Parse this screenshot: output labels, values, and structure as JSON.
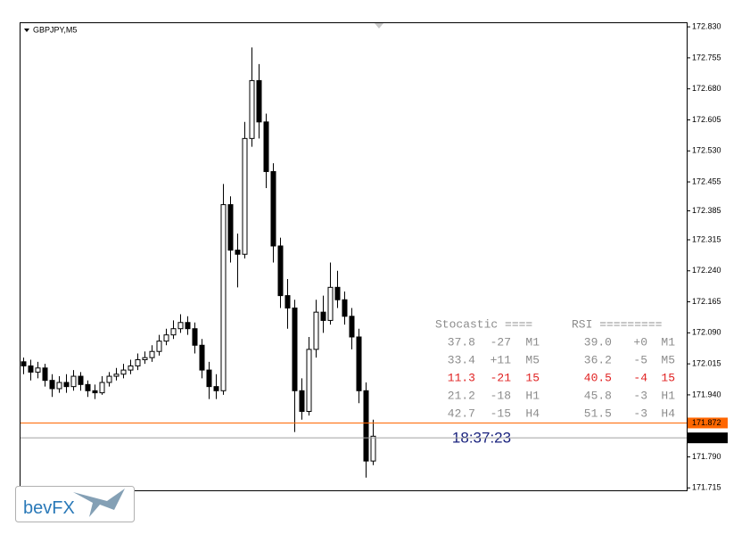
{
  "chart_data": {
    "type": "candlestick",
    "title": "GBPJPY,M5",
    "ylim": [
      171.707,
      172.841
    ],
    "yticks": [
      {
        "value": 172.83,
        "label": "172.830"
      },
      172.755,
      {
        "value": 172.68,
        "label": "172.680"
      },
      172.605,
      {
        "value": 172.53,
        "label": "172.530"
      },
      172.455,
      172.385,
      172.315,
      {
        "value": 172.24,
        "label": "172.240"
      },
      172.165,
      {
        "value": 172.09,
        "label": "172.090"
      },
      172.015,
      {
        "value": 171.94,
        "label": "171.940"
      },
      {
        "value": 171.79,
        "label": "171.790"
      },
      171.715
    ],
    "bull_color": "#ffffff",
    "bear_color": "#000000",
    "series": [
      {
        "open": [
          172.02,
          172.01,
          171.995,
          172.005,
          171.975,
          171.955,
          171.97,
          171.96,
          171.985,
          171.965,
          171.95,
          171.945,
          171.97,
          171.985,
          171.99,
          172.0,
          172.01,
          172.025,
          172.03,
          172.045,
          172.07,
          172.085,
          172.1,
          172.115,
          172.1,
          172.06,
          172.0,
          171.96,
          171.95,
          172.4,
          172.29,
          172.28,
          172.56,
          172.7,
          172.6,
          172.48,
          172.3,
          172.18,
          172.15,
          171.95,
          171.9,
          172.05,
          172.14,
          172.12,
          172.2,
          172.17,
          172.13,
          172.08,
          171.95,
          171.78
        ],
        "high": [
          172.03,
          172.025,
          172.02,
          172.015,
          171.99,
          171.985,
          171.99,
          172.0,
          171.995,
          171.975,
          171.965,
          171.985,
          171.995,
          172.005,
          172.015,
          172.025,
          172.04,
          172.045,
          172.06,
          172.085,
          172.1,
          172.12,
          172.135,
          172.13,
          172.115,
          172.075,
          172.02,
          171.99,
          172.45,
          172.42,
          172.33,
          172.6,
          172.78,
          172.74,
          172.62,
          172.5,
          172.32,
          172.22,
          172.17,
          171.98,
          172.08,
          172.17,
          172.18,
          172.26,
          172.24,
          172.19,
          172.15,
          172.1,
          171.97,
          171.88
        ],
        "low": [
          171.99,
          171.975,
          171.98,
          171.96,
          171.935,
          171.945,
          171.945,
          171.95,
          171.95,
          171.935,
          171.93,
          171.94,
          171.96,
          171.975,
          171.98,
          171.99,
          172.0,
          172.015,
          172.02,
          172.035,
          172.06,
          172.075,
          172.09,
          172.085,
          172.04,
          171.98,
          171.93,
          171.93,
          171.94,
          172.26,
          172.2,
          172.27,
          172.54,
          172.56,
          172.44,
          172.26,
          172.15,
          172.1,
          171.85,
          171.88,
          171.89,
          172.03,
          172.09,
          172.11,
          172.15,
          172.11,
          172.05,
          171.92,
          171.74,
          171.77
        ],
        "close": [
          172.01,
          171.995,
          172.005,
          171.975,
          171.955,
          171.97,
          171.96,
          171.985,
          171.965,
          171.95,
          171.945,
          171.97,
          171.985,
          171.99,
          172.0,
          172.01,
          172.025,
          172.03,
          172.045,
          172.07,
          172.085,
          172.1,
          172.115,
          172.1,
          172.06,
          172.0,
          171.96,
          171.95,
          172.4,
          172.29,
          172.28,
          172.56,
          172.7,
          172.6,
          172.48,
          172.3,
          172.18,
          172.15,
          171.95,
          171.9,
          172.05,
          172.14,
          172.12,
          172.2,
          172.17,
          172.13,
          172.08,
          171.95,
          171.78,
          171.84
        ]
      }
    ],
    "price_lines": [
      {
        "value": 171.872,
        "label": "171.872",
        "color": "#ff6600"
      },
      {
        "value": 171.836,
        "label": "171.836",
        "color": "#000000"
      }
    ],
    "indicator_panel": {
      "headers": [
        "Stocastic ====",
        "RSI ========="
      ],
      "rows": [
        [
          "37.8",
          "-27",
          "M1",
          "39.0",
          "+0",
          "M1"
        ],
        [
          "33.4",
          "+11",
          "M5",
          "36.2",
          "-5",
          "M5"
        ],
        [
          "11.3",
          "-21",
          "15",
          "40.5",
          "-4",
          "15"
        ],
        [
          "21.2",
          "-18",
          "H1",
          "45.8",
          "-3",
          "H1"
        ],
        [
          "42.7",
          "-15",
          "H4",
          "51.5",
          "-3",
          "H4"
        ]
      ],
      "row_colors": [
        "#8c8c8c",
        "#8c8c8c",
        "#e02020",
        "#8c8c8c",
        "#8c8c8c"
      ]
    },
    "timer": "18:37:23"
  },
  "logo": "bevFX"
}
